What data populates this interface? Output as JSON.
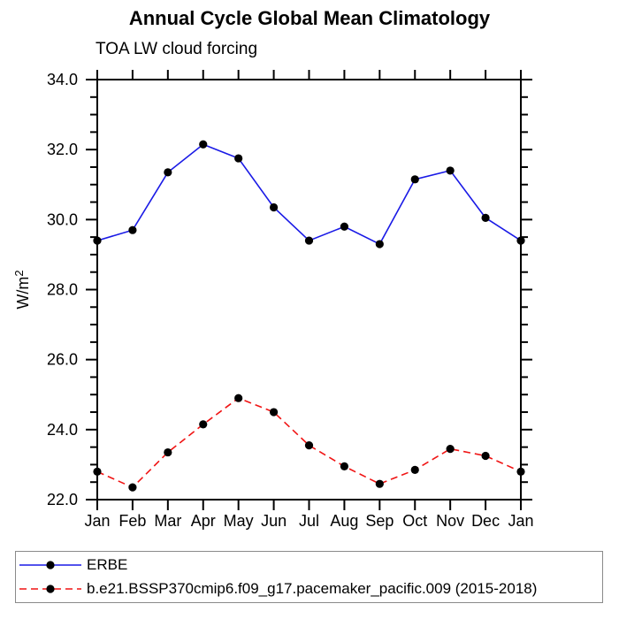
{
  "chart_data": {
    "type": "line",
    "title": "Annual Cycle Global Mean Climatology",
    "subtitle": "TOA LW cloud forcing",
    "ylabel": "W/m²",
    "xlabel": "",
    "categories": [
      "Jan",
      "Feb",
      "Mar",
      "Apr",
      "May",
      "Jun",
      "Jul",
      "Aug",
      "Sep",
      "Oct",
      "Nov",
      "Dec",
      "Jan"
    ],
    "ylim": [
      22.0,
      34.0
    ],
    "ytick_major": 2.0,
    "ytick_minor": 0.5,
    "ytick_labels": [
      "22.0",
      "24.0",
      "26.0",
      "28.0",
      "30.0",
      "32.0",
      "34.0"
    ],
    "grid": false,
    "legend_position": "bottom",
    "series": [
      {
        "name": "ERBE",
        "color": "#1a1ae6",
        "style": "solid",
        "marker": "circle",
        "marker_color": "#000000",
        "values": [
          29.4,
          29.7,
          31.35,
          32.15,
          31.75,
          30.35,
          29.4,
          29.8,
          29.3,
          31.15,
          31.4,
          30.05,
          29.4
        ]
      },
      {
        "name": "b.e21.BSSP370cmip6.f09_g17.pacemaker_pacific.009 (2015-2018)",
        "color": "#f01414",
        "style": "dashed",
        "marker": "circle",
        "marker_color": "#000000",
        "values": [
          22.8,
          22.35,
          23.35,
          24.15,
          24.9,
          24.5,
          23.55,
          22.95,
          22.45,
          22.85,
          23.45,
          23.25,
          22.8
        ]
      }
    ]
  }
}
